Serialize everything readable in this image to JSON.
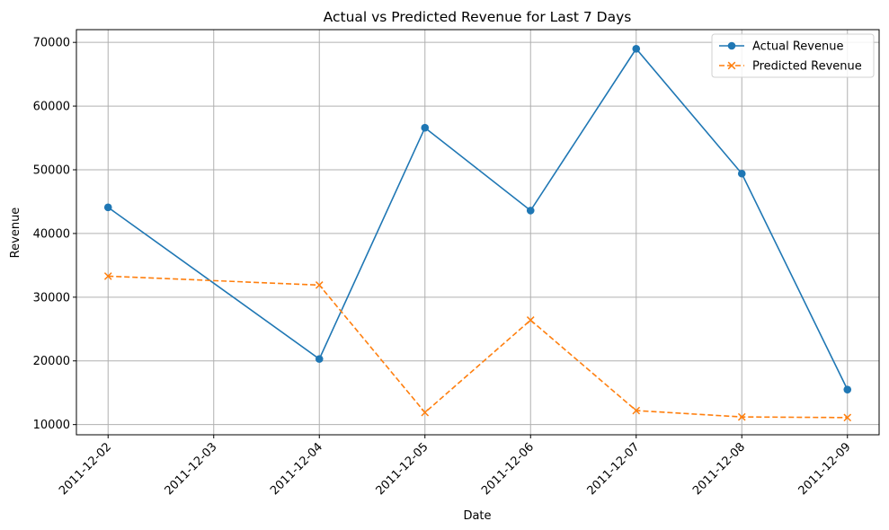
{
  "chart_data": {
    "type": "line",
    "title": "Actual vs Predicted Revenue for Last 7 Days",
    "xlabel": "Date",
    "ylabel": "Revenue",
    "x_ticks": [
      "2011-12-02",
      "2011-12-03",
      "2011-12-04",
      "2011-12-05",
      "2011-12-06",
      "2011-12-07",
      "2011-12-08",
      "2011-12-09"
    ],
    "y_ticks": [
      10000,
      20000,
      30000,
      40000,
      50000,
      60000,
      70000
    ],
    "xlim": [
      "2011-12-01T16:48",
      "2011-12-09T07:12"
    ],
    "ylim": [
      8400,
      72000
    ],
    "grid": true,
    "legend_position": "top-right",
    "series": [
      {
        "name": "Actual Revenue",
        "color": "#1f77b4",
        "line_style": "solid",
        "marker": "circle",
        "x": [
          "2011-12-02",
          "2011-12-04",
          "2011-12-05",
          "2011-12-06",
          "2011-12-07",
          "2011-12-08",
          "2011-12-09"
        ],
        "values": [
          44100,
          20300,
          56600,
          43600,
          69000,
          49400,
          15500
        ]
      },
      {
        "name": "Predicted Revenue",
        "color": "#ff7f0e",
        "line_style": "dashed",
        "marker": "x",
        "x": [
          "2011-12-02",
          "2011-12-04",
          "2011-12-05",
          "2011-12-06",
          "2011-12-07",
          "2011-12-08",
          "2011-12-09"
        ],
        "values": [
          33300,
          31900,
          11900,
          26400,
          12200,
          11200,
          11100
        ]
      }
    ]
  }
}
